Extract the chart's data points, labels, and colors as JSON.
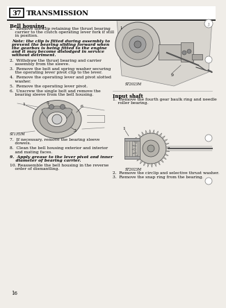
{
  "page_number": "37",
  "section_title": "TRANSMISSION",
  "bg_color": "#f0ede8",
  "subheading": "Bell housing.",
  "col1_items": [
    {
      "text": "1.  Remove the clip retaining the thrust bearing\n    carrier to the clutch operating lever fork if still\n    in position.",
      "style": "normal"
    },
    {
      "text": "Note: the clip is fitted during assembly to\nprevent the bearing sliding forward when\nthe gearbox is being fitted to the engine\nand it may become dislodged in service\nwithout detriment.",
      "style": "bold_italic"
    },
    {
      "text": "2.  Withdraw the thrust bearing and carrier\n    assembly from the sleeve.",
      "style": "normal"
    },
    {
      "text": "3.  Remove the bolt and spring washer securing\n    the operating lever pivot clip to the lever.",
      "style": "normal"
    },
    {
      "text": "4.  Remove the operating lever and pivot slotted\n    washer.",
      "style": "normal"
    },
    {
      "text": "5.  Remove the operating lever pivot.",
      "style": "normal"
    },
    {
      "text": "6.  Unscrew the single bolt and remove the\n    bearing sleeve from the bell housing.",
      "style": "normal"
    }
  ],
  "col1_items2": [
    {
      "text": "7.  If necessary, remove the bearing sleeve\n    dowels.",
      "style": "normal"
    },
    {
      "text": "8.  Clean the bell housing exterior and interior\n    and mating faces.",
      "style": "normal"
    },
    {
      "text": "9.  Apply grease to the lever pivot and inner\n    diameter of bearing carrier.",
      "style": "normal_bold9"
    },
    {
      "text": "10. Reassemble the bell housing in the reverse\n    order of dismantling.",
      "style": "normal"
    }
  ],
  "input_shaft_heading": "Input shaft",
  "input_shaft_items": [
    {
      "text": "1.  Remove the fourth gear baulk ring and needle\n    roller bearing.",
      "style": "normal"
    }
  ],
  "input_shaft_items2": [
    {
      "text": "2.  Remove the circlip and selective thrust washer.",
      "style": "normal"
    },
    {
      "text": "3.  Remove the snap ring from the bearing.",
      "style": "normal"
    }
  ],
  "fig1_label": "ST2023M",
  "fig2_label": "ST135/M",
  "fig3_label": "ST2023M",
  "page_footer": "16"
}
